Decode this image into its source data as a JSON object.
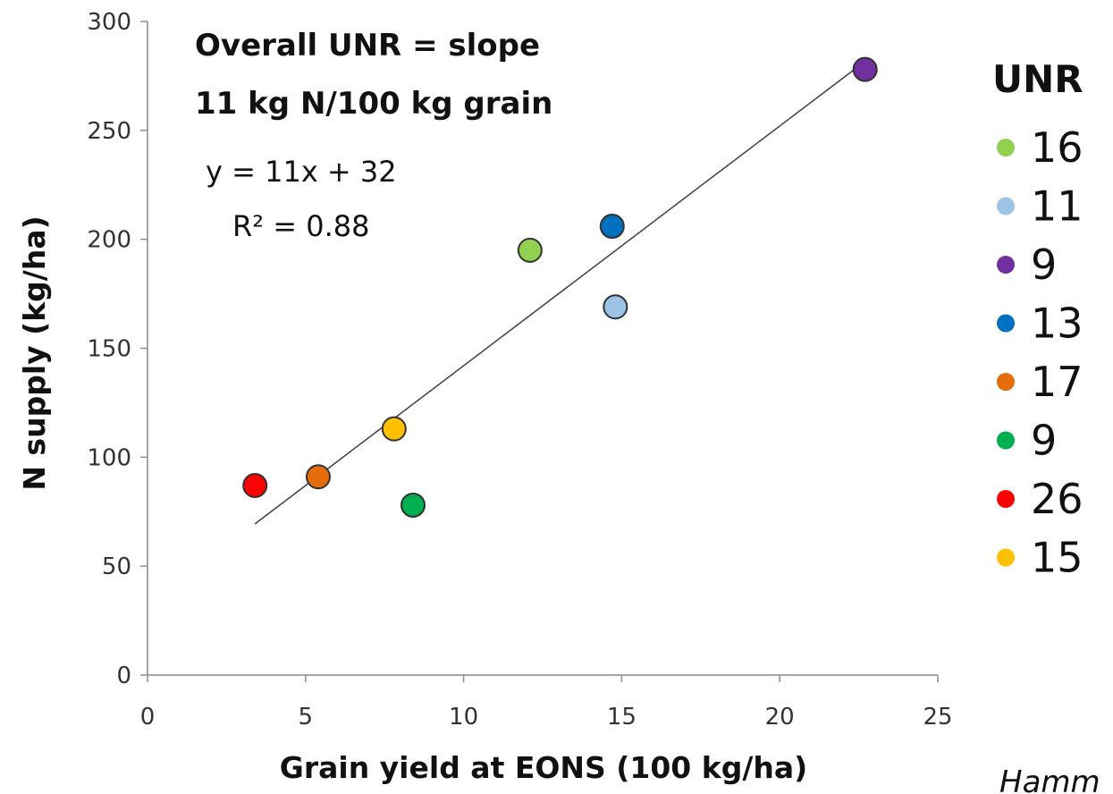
{
  "chart_data": {
    "type": "scatter",
    "xlabel": "Grain yield at EONS (100 kg/ha)",
    "ylabel": "N supply (kg/ha)",
    "xlim": [
      0,
      25
    ],
    "ylim": [
      0,
      300
    ],
    "xticks": [
      "0",
      "5",
      "10",
      "15",
      "20",
      "25"
    ],
    "yticks": [
      "0",
      "50",
      "100",
      "150",
      "200",
      "250",
      "300"
    ],
    "grid": false,
    "legend_title": "UNR",
    "legend_position": "right",
    "annotations": {
      "line1": "Overall UNR = slope",
      "line2": "11 kg N/100 kg grain",
      "equation": "y = 11x + 32",
      "r2": "R² = 0.88"
    },
    "trendline": {
      "slope": 11,
      "intercept": 32,
      "x_range": [
        3.4,
        22.7
      ]
    },
    "points": [
      {
        "label": "16",
        "x": 12.1,
        "y": 195,
        "color": "#92d050"
      },
      {
        "label": "11",
        "x": 14.8,
        "y": 169,
        "color": "#9dc3e6"
      },
      {
        "label": "9",
        "x": 22.7,
        "y": 278,
        "color": "#7030a0"
      },
      {
        "label": "13",
        "x": 14.7,
        "y": 206,
        "color": "#0070c0"
      },
      {
        "label": "17",
        "x": 5.4,
        "y": 91,
        "color": "#e46c0a"
      },
      {
        "label": "9",
        "x": 8.4,
        "y": 78,
        "color": "#00b050"
      },
      {
        "label": "26",
        "x": 3.4,
        "y": 87,
        "color": "#ff0000"
      },
      {
        "label": "15",
        "x": 7.8,
        "y": 113,
        "color": "#ffc000"
      }
    ],
    "source_note": "Hamm"
  }
}
